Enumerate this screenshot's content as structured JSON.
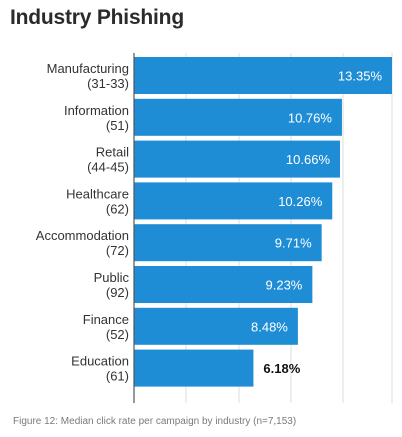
{
  "chart_data": {
    "type": "bar",
    "orientation": "horizontal",
    "title": "Industry Phishing",
    "caption": "Figure 12: Median click rate per campaign by industry (n=7,153)",
    "categories": [
      [
        "Manufacturing",
        "(31-33)"
      ],
      [
        "Information",
        "(51)"
      ],
      [
        "Retail",
        "(44-45)"
      ],
      [
        "Healthcare",
        "(62)"
      ],
      [
        "Accommodation",
        "(72)"
      ],
      [
        "Public",
        "(92)"
      ],
      [
        "Finance",
        "(52)"
      ],
      [
        "Education",
        "(61)"
      ]
    ],
    "values": [
      13.35,
      10.76,
      10.66,
      10.26,
      9.71,
      9.23,
      8.48,
      6.18
    ],
    "value_labels": [
      "13.35%",
      "10.76%",
      "10.66%",
      "10.26%",
      "9.71%",
      "9.23%",
      "8.48%",
      "6.18%"
    ],
    "xlim": [
      0,
      13.35
    ],
    "grid": true,
    "bar_color": "#1f8dd6"
  }
}
